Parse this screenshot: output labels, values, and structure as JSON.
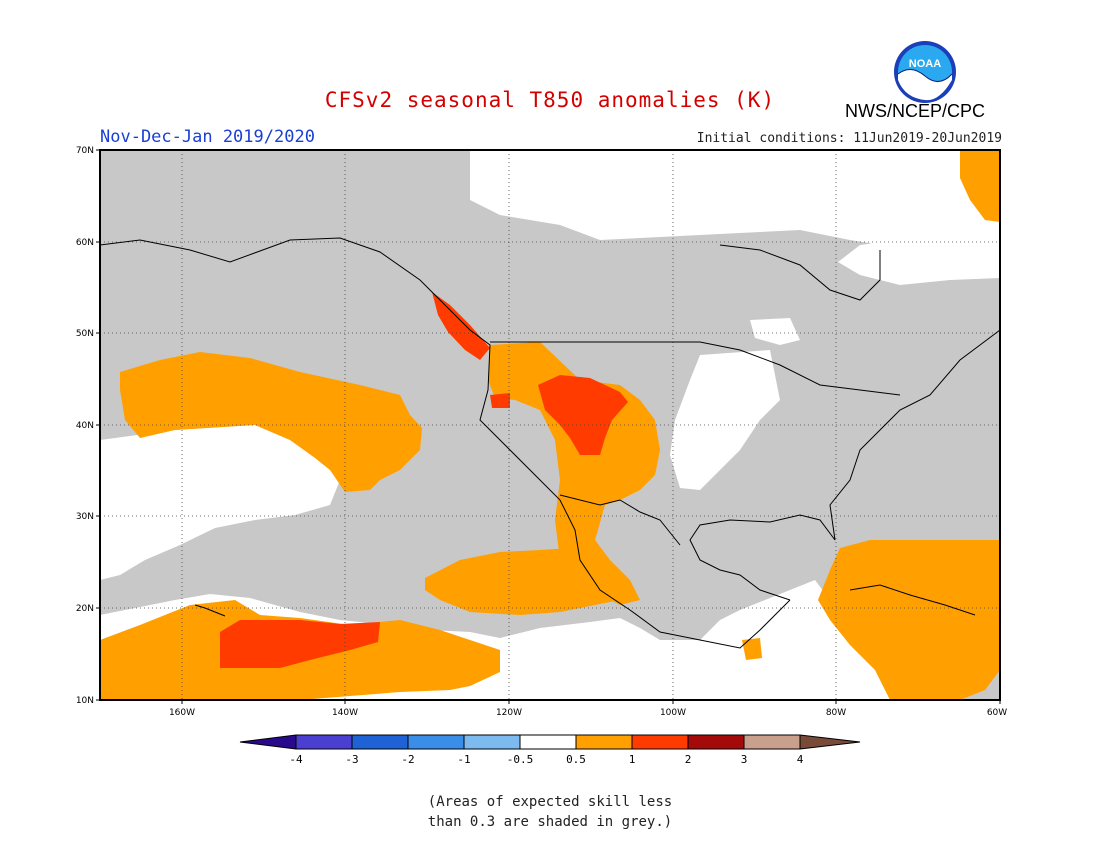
{
  "header": {
    "title": "CFSv2 seasonal T850 anomalies (K)",
    "subtitle": "Nov-Dec-Jan 2019/2020",
    "initial_conditions": "Initial conditions: 11Jun2019-20Jun2019",
    "agency": "NWS/NCEP/CPC",
    "logo_text": "NOAA"
  },
  "map": {
    "lon_range": [
      -170,
      -60
    ],
    "lat_range": [
      10,
      70
    ],
    "lat_ticks": [
      "10N",
      "20N",
      "30N",
      "40N",
      "50N",
      "60N",
      "70N"
    ],
    "lon_ticks": [
      "160W",
      "140W",
      "120W",
      "100W",
      "80W",
      "60W"
    ],
    "grid_style": "dotted"
  },
  "colorbar": {
    "labels": [
      "-4",
      "-3",
      "-2",
      "-1",
      "-0.5",
      "0.5",
      "1",
      "2",
      "3",
      "4"
    ],
    "colors": [
      "#2a0a8c",
      "#4a3fd0",
      "#1e62d6",
      "#3a8ee8",
      "#7dbaf0",
      "#ffffff",
      "#ff9f00",
      "#ff3b00",
      "#a50a0a",
      "#c8a08c",
      "#7a4a38"
    ]
  },
  "legend": {
    "skill_note": "(Areas of expected skill less\nthan 0.3 are shaded in grey.)",
    "grey_color": "#c8c8c8"
  }
}
